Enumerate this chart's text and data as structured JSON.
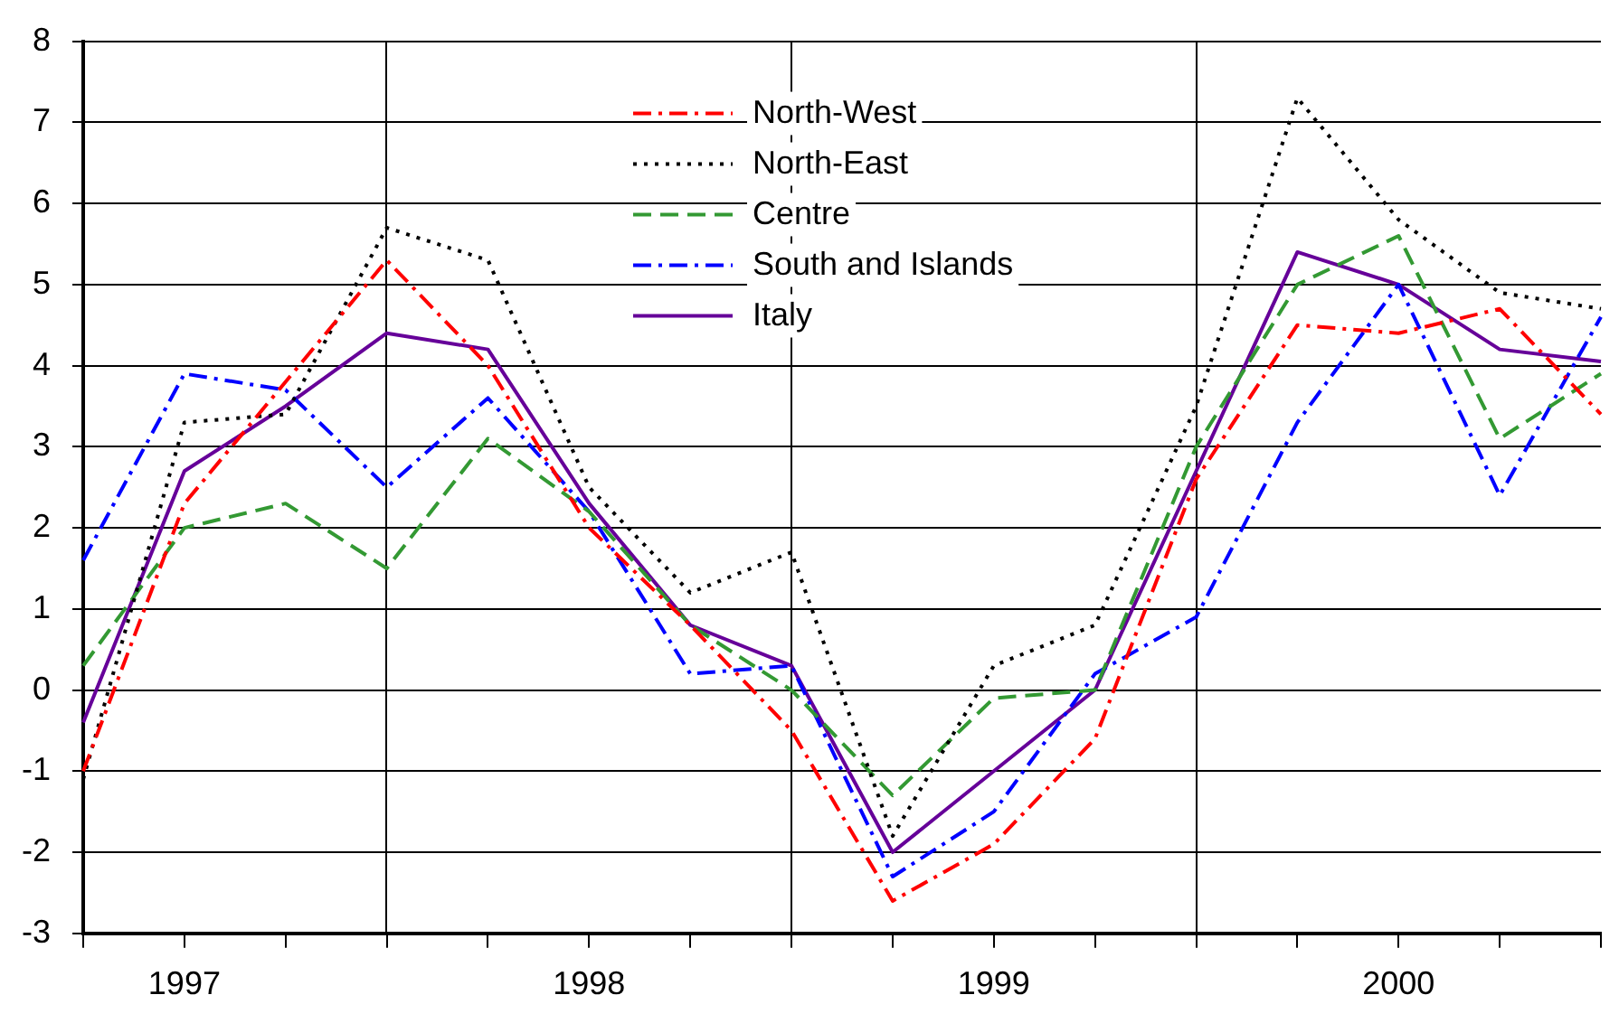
{
  "chart_data": {
    "type": "line",
    "categories": [
      null,
      "1997",
      null,
      null,
      null,
      "1998",
      null,
      null,
      null,
      "1999",
      null,
      null,
      null,
      "2000",
      null,
      null
    ],
    "ylim": [
      -3,
      8
    ],
    "yticks": [
      -3,
      -2,
      -1,
      0,
      1,
      2,
      3,
      4,
      5,
      6,
      7,
      8
    ],
    "grid": "y",
    "legend": "top",
    "marker": "none",
    "series": [
      {
        "name": "North-West",
        "color": "#ff0000",
        "line_style": "dashdot",
        "values": [
          -1.0,
          2.3,
          3.8,
          5.3,
          4.0,
          2.0,
          0.8,
          -0.5,
          -2.6,
          -1.9,
          -0.6,
          2.6,
          4.5,
          4.4,
          4.7,
          3.4
        ]
      },
      {
        "name": "North-East",
        "color": "#000000",
        "line_style": "dotted",
        "values": [
          -1.1,
          3.3,
          3.4,
          5.7,
          5.3,
          2.5,
          1.2,
          1.7,
          -1.8,
          0.3,
          0.8,
          3.5,
          7.3,
          5.8,
          4.9,
          4.7
        ]
      },
      {
        "name": "Centre",
        "color": "#339933",
        "line_style": "dashed",
        "values": [
          0.3,
          2.0,
          2.3,
          1.5,
          3.1,
          2.2,
          0.8,
          0.0,
          -1.3,
          -0.1,
          0.0,
          3.0,
          5.0,
          5.6,
          3.1,
          3.9
        ]
      },
      {
        "name": "South and Islands",
        "color": "#0000ff",
        "line_style": "dashdot",
        "values": [
          1.6,
          3.9,
          3.7,
          2.5,
          3.6,
          2.2,
          0.2,
          0.3,
          -2.3,
          -1.5,
          0.2,
          0.9,
          3.3,
          5.0,
          2.4,
          4.6
        ]
      },
      {
        "name": "Italy",
        "color": "#660099",
        "line_style": "solid",
        "values": [
          -0.4,
          2.7,
          3.5,
          4.4,
          4.2,
          2.3,
          0.8,
          0.3,
          -2.0,
          -1.0,
          0.0,
          2.7,
          5.4,
          5.0,
          4.2,
          4.05
        ]
      }
    ]
  }
}
